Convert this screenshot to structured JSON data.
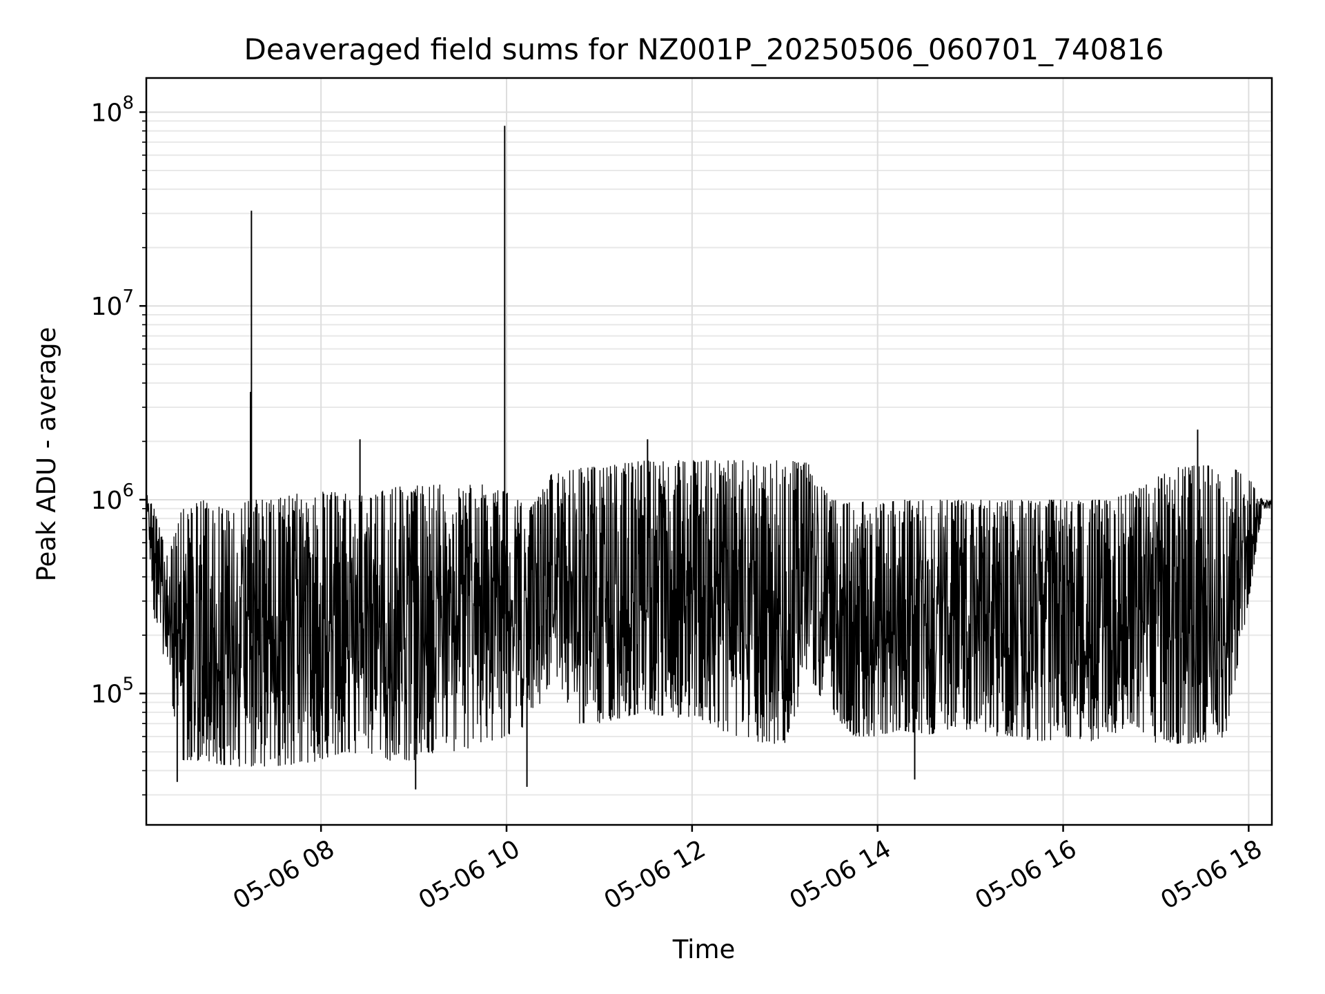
{
  "chart_data": {
    "type": "line",
    "title": "Deaveraged field sums for NZ001P_20250506_060701_740816",
    "xlabel": "Time",
    "ylabel": "Peak ADU - average",
    "x_range": [
      "2025-05-06 06:07",
      "2025-05-06 18:15"
    ],
    "ylim": [
      21000,
      150000000
    ],
    "yscale": "log",
    "grid": true,
    "x_ticks": [
      "05-06 08",
      "05-06 10",
      "05-06 12",
      "05-06 14",
      "05-06 16",
      "05-06 18"
    ],
    "x_tick_hours": [
      8,
      10,
      12,
      14,
      16,
      18
    ],
    "y_ticks": [
      {
        "value": 100000,
        "base": "10",
        "exp": "5"
      },
      {
        "value": 1000000,
        "base": "10",
        "exp": "6"
      },
      {
        "value": 10000000,
        "base": "10",
        "exp": "7"
      },
      {
        "value": 100000000,
        "base": "10",
        "exp": "8"
      }
    ],
    "line_color": "#000000",
    "series": [
      {
        "x_hours": [
          6.12,
          6.2,
          6.35,
          6.5,
          6.75,
          7.0,
          7.25,
          7.5,
          7.75,
          8.0,
          8.25,
          8.5,
          8.75,
          9.0,
          9.25,
          9.5,
          9.75,
          10.0,
          10.25,
          10.5,
          10.75,
          11.0,
          11.25,
          11.5,
          11.75,
          12.0,
          12.25,
          12.5,
          12.75,
          13.0,
          13.25,
          13.5,
          13.75,
          14.0,
          14.25,
          14.5,
          14.75,
          15.0,
          15.25,
          15.5,
          15.75,
          16.0,
          16.25,
          16.5,
          16.75,
          17.0,
          17.25,
          17.5,
          17.75,
          18.0,
          18.15
        ],
        "upper": [
          1200000,
          900000,
          500000,
          900000,
          1000000,
          900000,
          1000000,
          1000000,
          1100000,
          1100000,
          1100000,
          1100000,
          1150000,
          1200000,
          1200000,
          1200000,
          1200000,
          1100000,
          900000,
          1400000,
          1450000,
          1500000,
          1550000,
          1600000,
          1600000,
          1600000,
          1600000,
          1600000,
          1600000,
          1600000,
          1550000,
          1000000,
          1000000,
          950000,
          1000000,
          1000000,
          1000000,
          1000000,
          1000000,
          1000000,
          1000000,
          1000000,
          1000000,
          1000000,
          1100000,
          1300000,
          1500000,
          1500000,
          1550000,
          1300000,
          1000000
        ],
        "lower": [
          900000,
          250000,
          120000,
          45000,
          45000,
          42000,
          42000,
          42000,
          43000,
          45000,
          50000,
          48000,
          45000,
          45000,
          50000,
          50000,
          55000,
          60000,
          70000,
          120000,
          70000,
          70000,
          75000,
          80000,
          75000,
          75000,
          65000,
          60000,
          55000,
          55000,
          120000,
          80000,
          60000,
          60000,
          65000,
          60000,
          65000,
          65000,
          60000,
          60000,
          55000,
          60000,
          55000,
          60000,
          70000,
          55000,
          55000,
          55000,
          60000,
          300000,
          900000
        ],
        "spikes": [
          {
            "x_hour": 7.25,
            "value": 31000000
          },
          {
            "x_hour": 7.24,
            "value": 3600000
          },
          {
            "x_hour": 9.98,
            "value": 85000000
          },
          {
            "x_hour": 8.42,
            "value": 2050000
          },
          {
            "x_hour": 11.52,
            "value": 2050000
          },
          {
            "x_hour": 17.45,
            "value": 2300000
          },
          {
            "x_hour": 10.22,
            "value": 33000
          },
          {
            "x_hour": 9.02,
            "value": 32000
          },
          {
            "x_hour": 14.4,
            "value": 36000
          },
          {
            "x_hour": 6.45,
            "value": 35000
          }
        ]
      }
    ]
  }
}
